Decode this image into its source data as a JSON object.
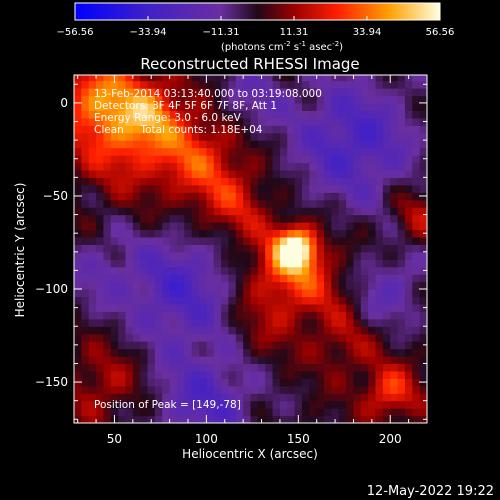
{
  "chart_data": {
    "type": "heatmap",
    "title": "Reconstructed RHESSI Image",
    "xlabel": "Heliocentric X (arcsec)",
    "ylabel": "Heliocentric Y (arcsec)",
    "xlim": [
      28,
      220
    ],
    "ylim": [
      -172,
      15
    ],
    "xticks": [
      50,
      100,
      150,
      200
    ],
    "yticks": [
      0,
      -50,
      -100,
      -150
    ],
    "colorbar": {
      "min": -56.56,
      "max": 56.56,
      "ticks": [
        "-56.56",
        "-33.94",
        "-11.31",
        "11.31",
        "33.94",
        "56.56"
      ],
      "unit_main": "(photons cm",
      "unit_exp1": "-2",
      "unit_mid": " s",
      "unit_exp2": "-1",
      "unit_mid2": " asec",
      "unit_exp3": "-2",
      "unit_end": ")"
    },
    "annotations": [
      "13-Feb-2014 03:13:40.000 to 03:19:08.000",
      "Detectors: 3F 4F 5F 6F 7F 8F, Att 1",
      "Energy Range: 3.0 - 6.0 keV",
      "Clean     Total counts: 1.18E+04"
    ],
    "peak_label": "Position of Peak = [149,-78]",
    "peak": [
      149,
      -78
    ],
    "sources": [
      {
        "x": 149,
        "y": -78,
        "amp": 56,
        "sigma": 8
      },
      {
        "x": 140,
        "y": -90,
        "amp": 22,
        "sigma": 14
      },
      {
        "x": 160,
        "y": -100,
        "amp": 14,
        "sigma": 14
      },
      {
        "x": 55,
        "y": -15,
        "amp": 28,
        "sigma": 20
      },
      {
        "x": 95,
        "y": -30,
        "amp": 24,
        "sigma": 16
      },
      {
        "x": 115,
        "y": -55,
        "amp": 18,
        "sigma": 14
      },
      {
        "x": 40,
        "y": 5,
        "amp": 24,
        "sigma": 14
      },
      {
        "x": 70,
        "y": -5,
        "amp": 20,
        "sigma": 12
      },
      {
        "x": 200,
        "y": -155,
        "amp": 26,
        "sigma": 10
      },
      {
        "x": 215,
        "y": -60,
        "amp": 14,
        "sigma": 10
      },
      {
        "x": 175,
        "y": -130,
        "amp": 12,
        "sigma": 12
      },
      {
        "x": 130,
        "y": -120,
        "amp": 10,
        "sigma": 14
      },
      {
        "x": 45,
        "y": -150,
        "amp": 14,
        "sigma": 14
      },
      {
        "x": 85,
        "y": -100,
        "amp": -26,
        "sigma": 22
      },
      {
        "x": 180,
        "y": -20,
        "amp": -28,
        "sigma": 24
      },
      {
        "x": 100,
        "y": -160,
        "amp": -24,
        "sigma": 20
      },
      {
        "x": 200,
        "y": -100,
        "amp": -18,
        "sigma": 14
      },
      {
        "x": 125,
        "y": 5,
        "amp": -14,
        "sigma": 14
      },
      {
        "x": 40,
        "y": -90,
        "amp": -12,
        "sigma": 14
      }
    ]
  },
  "timestamp": "12-May-2022 19:22"
}
